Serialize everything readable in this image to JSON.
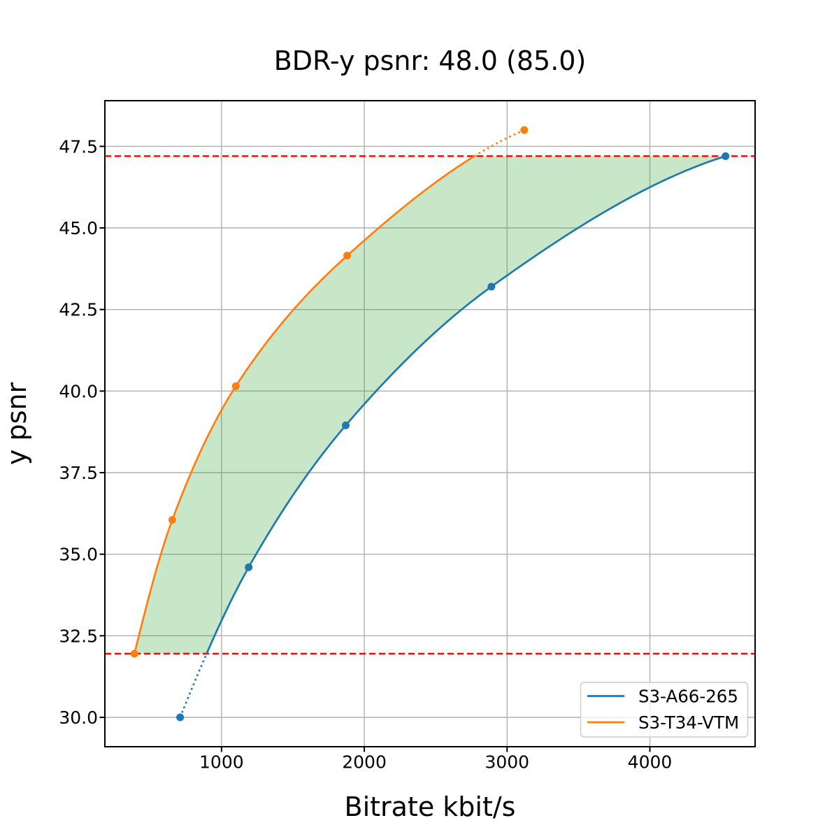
{
  "chart_data": {
    "type": "line",
    "title": "BDR-y psnr: 48.0 (85.0)",
    "xlabel": "Bitrate kbit/s",
    "ylabel": "y psnr",
    "xlim": [
      183,
      4737
    ],
    "ylim": [
      29.1,
      48.9
    ],
    "xtick_values": [
      1000,
      2000,
      3000,
      4000
    ],
    "xtick_labels": [
      "1000",
      "2000",
      "3000",
      "4000"
    ],
    "ytick_values": [
      30.0,
      32.5,
      35.0,
      37.5,
      40.0,
      42.5,
      45.0,
      47.5
    ],
    "ytick_labels": [
      "30.0",
      "32.5",
      "35.0",
      "37.5",
      "40.0",
      "42.5",
      "45.0",
      "47.5"
    ],
    "grid": true,
    "grid_color": "#b0b0b0",
    "legend_position": "lower right",
    "series": [
      {
        "name": "S3-A66-265",
        "color": "#1f77b4",
        "x": [
          710,
          1190,
          1870,
          2890,
          4530
        ],
        "y": [
          30.0,
          34.6,
          38.95,
          43.2,
          47.2
        ],
        "dotted_segment": "below lower red line"
      },
      {
        "name": "S3-T34-VTM",
        "color": "#ff7f0e",
        "x": [
          390,
          655,
          1100,
          1880,
          3120
        ],
        "y": [
          31.95,
          36.05,
          40.15,
          44.15,
          48.0
        ],
        "dotted_segment": "above upper red line"
      }
    ],
    "hlines": {
      "values": [
        31.95,
        47.2
      ],
      "color": "#ff0000",
      "style": "dashed"
    },
    "fill_between": {
      "color": "#2ca02c",
      "opacity": 0.26
    }
  }
}
